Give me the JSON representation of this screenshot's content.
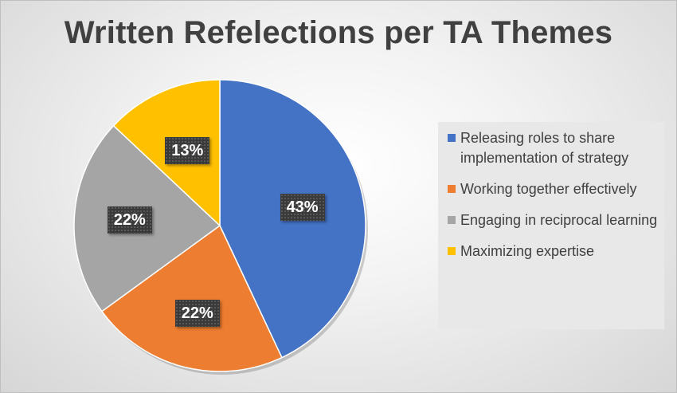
{
  "chart_data": {
    "type": "pie",
    "title": "Written Refelections per TA Themes",
    "series": [
      {
        "name": "Releasing roles to share implementation of strategy",
        "value": 43,
        "label": "43%",
        "color": "#4472C4"
      },
      {
        "name": "Working together effectively",
        "value": 22,
        "label": "22%",
        "color": "#ED7D31"
      },
      {
        "name": "Engaging in reciprocal learning",
        "value": 22,
        "label": "22%",
        "color": "#A5A5A5"
      },
      {
        "name": "Maximizing expertise",
        "value": 13,
        "label": "13%",
        "color": "#FFC000"
      }
    ],
    "legend_position": "right"
  }
}
